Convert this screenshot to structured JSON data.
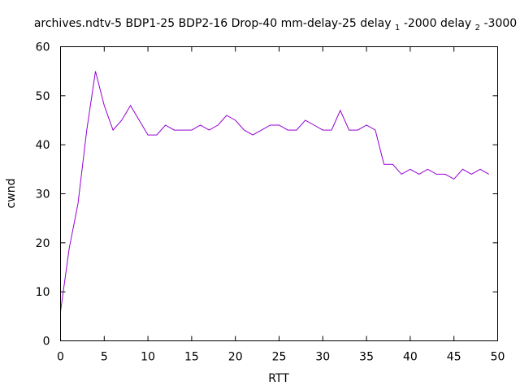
{
  "chart_data": {
    "type": "line",
    "title": {
      "main": "archives.ndtv-5 BDP1-25 BDP2-16 Drop-40 mm-delay-25 delay",
      "sub1": "1",
      "mid": "-2000 delay",
      "sub2": "2",
      "end": "-3000"
    },
    "xlabel": "RTT",
    "ylabel": "cwnd",
    "xlim": [
      0,
      50
    ],
    "ylim": [
      0,
      60
    ],
    "xticks": [
      "0",
      "5",
      "10",
      "15",
      "20",
      "25",
      "30",
      "35",
      "40",
      "45",
      "50"
    ],
    "yticks": [
      "0",
      "10",
      "20",
      "30",
      "40",
      "50",
      "60"
    ],
    "grid": false,
    "legend": "none",
    "series": [
      {
        "color": "#9400d3",
        "x": [
          0,
          1,
          2,
          3,
          4,
          5,
          6,
          7,
          8,
          9,
          10,
          11,
          12,
          13,
          14,
          15,
          16,
          17,
          18,
          19,
          20,
          21,
          22,
          23,
          24,
          25,
          26,
          27,
          28,
          29,
          30,
          31,
          32,
          33,
          34,
          35,
          36,
          37,
          38,
          39,
          40,
          41,
          42,
          43,
          44,
          45,
          46,
          47,
          48,
          49
        ],
        "y": [
          6,
          19,
          28,
          43,
          55,
          48,
          43,
          45,
          48,
          45,
          42,
          42,
          44,
          43,
          43,
          43,
          44,
          43,
          44,
          46,
          45,
          43,
          42,
          43,
          44,
          44,
          43,
          43,
          45,
          44,
          43,
          43,
          47,
          43,
          43,
          44,
          43,
          36,
          36,
          34,
          35,
          34,
          35,
          34,
          34,
          33,
          35,
          34,
          35,
          34
        ]
      }
    ]
  }
}
